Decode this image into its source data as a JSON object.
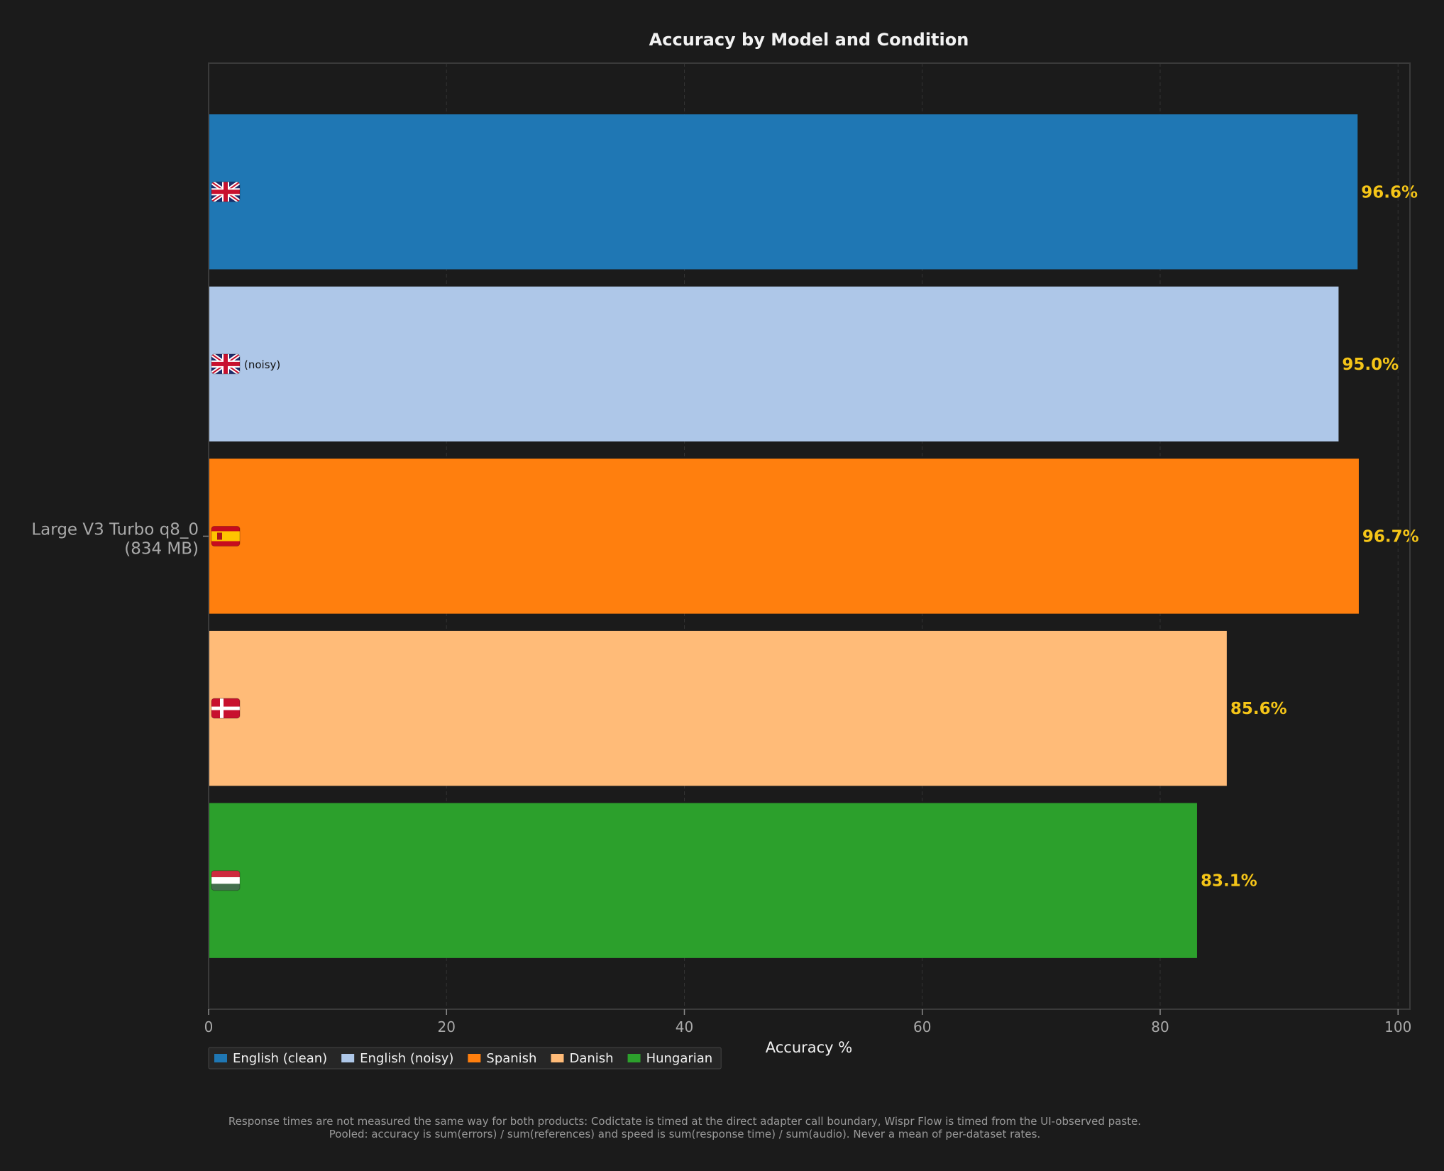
{
  "chart_data": {
    "type": "bar",
    "orientation": "horizontal",
    "title": "Accuracy by Model and Condition",
    "xlabel": "Accuracy %",
    "ylabel": "",
    "xlim": [
      0,
      101
    ],
    "xticks": [
      0,
      20,
      40,
      60,
      80,
      100
    ],
    "grid": true,
    "legend_position": "bottom-left",
    "categories": [
      "Large V3 Turbo q8_0\n(834 MB)"
    ],
    "series": [
      {
        "name": "English (clean)",
        "values": [
          96.6
        ],
        "color": "#1f77b4",
        "flag": "uk",
        "marker": "",
        "label": "96.6%"
      },
      {
        "name": "English (noisy)",
        "values": [
          95.0
        ],
        "color": "#aec7e8",
        "flag": "uk",
        "marker": "(noisy)",
        "label": "95.0%"
      },
      {
        "name": "Spanish",
        "values": [
          96.7
        ],
        "color": "#ff7f0e",
        "flag": "es",
        "marker": "",
        "label": "96.7%"
      },
      {
        "name": "Danish",
        "values": [
          85.6
        ],
        "color": "#ffbb78",
        "flag": "dk",
        "marker": "",
        "label": "85.6%"
      },
      {
        "name": "Hungarian",
        "values": [
          83.1
        ],
        "color": "#2ca02c",
        "flag": "hu",
        "marker": "",
        "label": "83.1%"
      }
    ],
    "value_label_color": "#f5c518"
  },
  "footnote": [
    "Response times are not measured the same way for both products: Codictate is timed at the direct adapter call boundary, Wispr Flow is timed from the UI-observed paste.",
    "Pooled: accuracy is sum(errors) / sum(references) and speed is sum(response time) / sum(audio). Never a mean of per-dataset rates."
  ],
  "colors": {
    "background": "#1b1b1b",
    "axis": "#3a3a3a",
    "grid": "#333333"
  }
}
